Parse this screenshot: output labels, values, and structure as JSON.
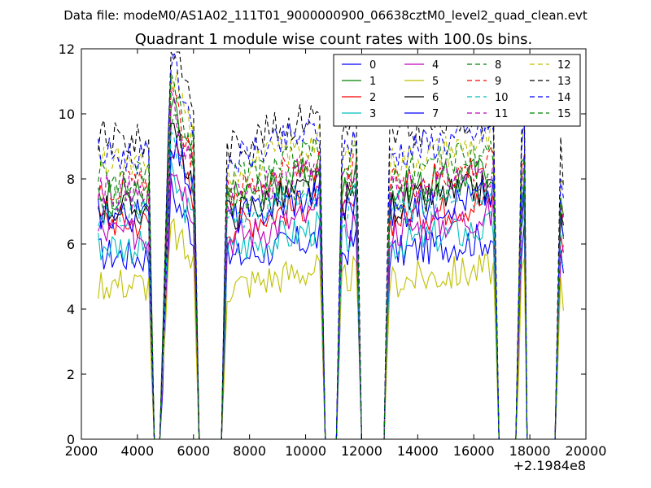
{
  "suptitle": "Data file: modeM0/AS1A02_111T01_9000000900_06638cztM0_level2_quad_clean.evt",
  "chart_data": {
    "type": "line",
    "title": "Quadrant 1 module wise count rates with 100.0s bins.",
    "xlabel": "",
    "ylabel": "",
    "x_offset_label": "+2.1984e8",
    "xlim": [
      2000,
      20000
    ],
    "ylim": [
      0,
      12
    ],
    "xticks": [
      2000,
      4000,
      6000,
      8000,
      10000,
      12000,
      14000,
      16000,
      18000,
      20000
    ],
    "yticks": [
      0,
      2,
      4,
      6,
      8,
      10,
      12
    ],
    "grid": false,
    "legend_location": "top-right",
    "x_segment_ends": [
      2600,
      4400,
      4600,
      4800,
      5000,
      5200,
      6000,
      6200,
      6400,
      7000,
      7200,
      10500,
      10700,
      10900,
      11100,
      11300,
      11800,
      12000,
      12200,
      12800,
      13000,
      16700,
      16900,
      17300,
      17500,
      17700,
      17800,
      17900,
      18100,
      18900,
      19100,
      19200
    ],
    "baseline_values": [
      5.8,
      5.7,
      0,
      0,
      4.0,
      7.8,
      6.4,
      0,
      0,
      0,
      5.6,
      6.3,
      0,
      0,
      0,
      5.8,
      6.2,
      0,
      0,
      0,
      5.8,
      6.3,
      0,
      0,
      0,
      5.8,
      6.5,
      0,
      0,
      0,
      5.5,
      5.0
    ],
    "series": [
      {
        "name": "0",
        "color": "#0000ff",
        "style": "solid",
        "level": 5.9
      },
      {
        "name": "1",
        "color": "#008000",
        "style": "solid",
        "level": 7.9
      },
      {
        "name": "2",
        "color": "#ff0000",
        "style": "solid",
        "level": 7.0
      },
      {
        "name": "3",
        "color": "#00bfbf",
        "style": "solid",
        "level": 6.2
      },
      {
        "name": "4",
        "color": "#bf00bf",
        "style": "solid",
        "level": 6.6
      },
      {
        "name": "5",
        "color": "#bfbf00",
        "style": "solid",
        "level": 5.0
      },
      {
        "name": "6",
        "color": "#000000",
        "style": "solid",
        "level": 7.4
      },
      {
        "name": "7",
        "color": "#0000ff",
        "style": "solid",
        "level": 7.2
      },
      {
        "name": "8",
        "color": "#008000",
        "style": "dashed",
        "level": 7.7
      },
      {
        "name": "9",
        "color": "#ff0000",
        "style": "dashed",
        "level": 8.1
      },
      {
        "name": "10",
        "color": "#00bfbf",
        "style": "dashed",
        "level": 7.3
      },
      {
        "name": "11",
        "color": "#bf00bf",
        "style": "dashed",
        "level": 7.9
      },
      {
        "name": "12",
        "color": "#bfbf00",
        "style": "dashed",
        "level": 8.8
      },
      {
        "name": "13",
        "color": "#000000",
        "style": "dashed",
        "level": 9.6
      },
      {
        "name": "14",
        "color": "#0000ff",
        "style": "dashed",
        "level": 9.1
      },
      {
        "name": "15",
        "color": "#008000",
        "style": "dashed",
        "level": 8.4
      }
    ]
  }
}
